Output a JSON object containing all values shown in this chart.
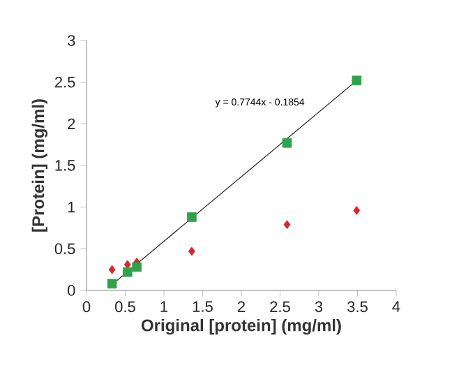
{
  "chart_data": {
    "type": "scatter",
    "xlabel": "Original [protein] (mg/ml)",
    "ylabel": "[Protein] (mg/ml)",
    "xlim": [
      0,
      4
    ],
    "ylim": [
      0,
      3
    ],
    "xticks": [
      0,
      0.5,
      1,
      1.5,
      2,
      2.5,
      3,
      3.5,
      4
    ],
    "yticks": [
      0,
      0.5,
      1,
      1.5,
      2,
      2.5,
      3
    ],
    "grid": false,
    "series": [
      {
        "type": "line",
        "color": "#222222",
        "marker": "none",
        "x": [
          0.33,
          3.49
        ],
        "values": [
          0.07,
          2.52
        ]
      },
      {
        "color": "#d7262e",
        "marker": "diamond",
        "x": [
          0.33,
          0.53,
          0.65,
          1.36,
          2.59,
          3.49
        ],
        "values": [
          0.25,
          0.31,
          0.34,
          0.47,
          0.79,
          0.96
        ]
      },
      {
        "color": "#2fa34a",
        "marker": "square",
        "x": [
          0.33,
          0.53,
          0.65,
          1.36,
          2.59,
          3.49
        ],
        "values": [
          0.08,
          0.22,
          0.28,
          0.88,
          1.77,
          2.52
        ]
      }
    ],
    "annotations": [
      "y = 0.7744x - 0.1854"
    ]
  }
}
